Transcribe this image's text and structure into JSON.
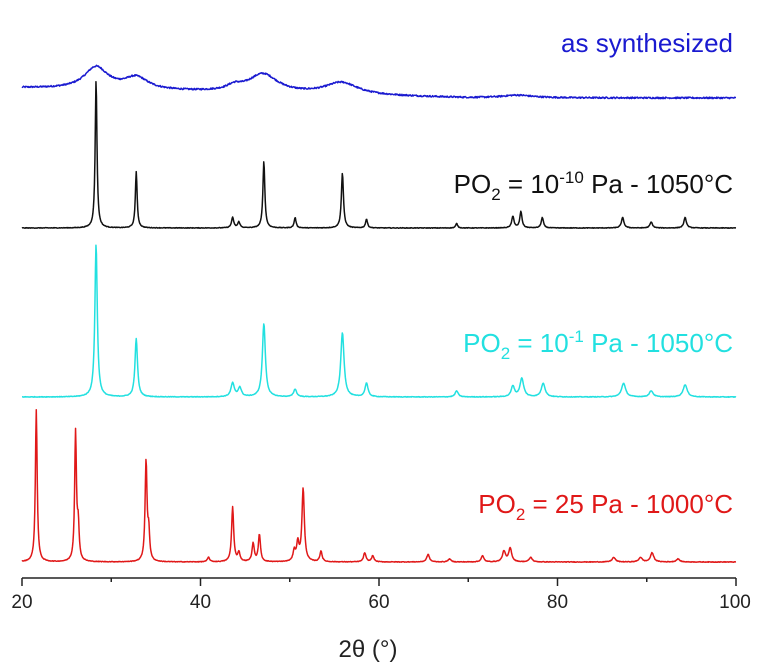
{
  "chart_data": {
    "type": "line",
    "xlabel": "2θ (°)",
    "ylabel": "",
    "xlim": [
      20,
      100
    ],
    "xticks": [
      20,
      40,
      60,
      80,
      100
    ],
    "xtick_labels": [
      "20",
      "40",
      "60",
      "80",
      "100"
    ],
    "grid": false,
    "legend": "inline labels",
    "series": [
      {
        "name": "as synthesized",
        "label_parts": {
          "main": "as synthesized"
        },
        "color": "#1a1ad0",
        "baseline": 0.45,
        "broad": true,
        "peaks": [
          {
            "x": 28.3,
            "h": 1.0,
            "w": 1.6
          },
          {
            "x": 32.8,
            "h": 0.55,
            "w": 1.6
          },
          {
            "x": 43.8,
            "h": 0.22,
            "w": 1.0
          },
          {
            "x": 47.0,
            "h": 0.85,
            "w": 2.0
          },
          {
            "x": 55.8,
            "h": 0.55,
            "w": 2.2
          },
          {
            "x": 75.5,
            "h": 0.12,
            "w": 2.0
          }
        ]
      },
      {
        "name": "PO2 = 10-10 Pa - 1050°C",
        "label_parts": {
          "pre": "PO",
          "sub": "2",
          "mid": " = 10",
          "sup": "-10",
          "post": " Pa - 1050°C"
        },
        "color": "#111111",
        "baseline": 0.0,
        "broad": false,
        "peaks": [
          {
            "x": 28.3,
            "h": 1.0,
            "w": 0.12
          },
          {
            "x": 32.8,
            "h": 0.38,
            "w": 0.12
          },
          {
            "x": 43.6,
            "h": 0.07,
            "w": 0.15
          },
          {
            "x": 44.3,
            "h": 0.04,
            "w": 0.15
          },
          {
            "x": 47.1,
            "h": 0.45,
            "w": 0.13
          },
          {
            "x": 50.6,
            "h": 0.07,
            "w": 0.13
          },
          {
            "x": 55.9,
            "h": 0.37,
            "w": 0.14
          },
          {
            "x": 58.6,
            "h": 0.06,
            "w": 0.13
          },
          {
            "x": 68.7,
            "h": 0.03,
            "w": 0.13
          },
          {
            "x": 75.0,
            "h": 0.08,
            "w": 0.15
          },
          {
            "x": 75.9,
            "h": 0.11,
            "w": 0.15
          },
          {
            "x": 78.3,
            "h": 0.07,
            "w": 0.15
          },
          {
            "x": 87.3,
            "h": 0.07,
            "w": 0.17
          },
          {
            "x": 90.5,
            "h": 0.04,
            "w": 0.17
          },
          {
            "x": 94.3,
            "h": 0.07,
            "w": 0.17
          }
        ]
      },
      {
        "name": "PO2 = 10-1 Pa - 1050°C",
        "label_parts": {
          "pre": "PO",
          "sub": "2",
          "mid": " = 10",
          "sup": "-1",
          "post": " Pa - 1050°C"
        },
        "color": "#22e0e0",
        "baseline": 0.0,
        "broad": false,
        "peaks": [
          {
            "x": 28.3,
            "h": 1.0,
            "w": 0.16
          },
          {
            "x": 32.8,
            "h": 0.38,
            "w": 0.17
          },
          {
            "x": 43.6,
            "h": 0.09,
            "w": 0.22
          },
          {
            "x": 44.4,
            "h": 0.06,
            "w": 0.22
          },
          {
            "x": 47.1,
            "h": 0.48,
            "w": 0.2
          },
          {
            "x": 50.6,
            "h": 0.05,
            "w": 0.2
          },
          {
            "x": 55.9,
            "h": 0.42,
            "w": 0.22
          },
          {
            "x": 58.6,
            "h": 0.09,
            "w": 0.2
          },
          {
            "x": 68.7,
            "h": 0.04,
            "w": 0.2
          },
          {
            "x": 75.0,
            "h": 0.07,
            "w": 0.22
          },
          {
            "x": 76.0,
            "h": 0.12,
            "w": 0.25
          },
          {
            "x": 78.4,
            "h": 0.09,
            "w": 0.25
          },
          {
            "x": 87.4,
            "h": 0.09,
            "w": 0.27
          },
          {
            "x": 90.5,
            "h": 0.04,
            "w": 0.25
          },
          {
            "x": 94.3,
            "h": 0.08,
            "w": 0.27
          }
        ]
      },
      {
        "name": "PO2 = 25 Pa - 1000°C",
        "label_parts": {
          "pre": "PO",
          "sub": "2",
          "mid": " = 25 Pa - 1000°C"
        },
        "color": "#e01818",
        "baseline": 0.0,
        "broad": false,
        "peaks": [
          {
            "x": 21.6,
            "h": 1.0,
            "w": 0.12
          },
          {
            "x": 26.0,
            "h": 0.85,
            "w": 0.12
          },
          {
            "x": 26.3,
            "h": 0.22,
            "w": 0.12
          },
          {
            "x": 33.9,
            "h": 0.66,
            "w": 0.13
          },
          {
            "x": 34.2,
            "h": 0.18,
            "w": 0.12
          },
          {
            "x": 40.9,
            "h": 0.03,
            "w": 0.15
          },
          {
            "x": 43.6,
            "h": 0.36,
            "w": 0.14
          },
          {
            "x": 44.3,
            "h": 0.06,
            "w": 0.15
          },
          {
            "x": 45.9,
            "h": 0.12,
            "w": 0.15
          },
          {
            "x": 46.6,
            "h": 0.18,
            "w": 0.14
          },
          {
            "x": 50.5,
            "h": 0.07,
            "w": 0.15
          },
          {
            "x": 50.9,
            "h": 0.12,
            "w": 0.15
          },
          {
            "x": 51.5,
            "h": 0.48,
            "w": 0.16
          },
          {
            "x": 53.5,
            "h": 0.07,
            "w": 0.15
          },
          {
            "x": 58.4,
            "h": 0.06,
            "w": 0.16
          },
          {
            "x": 59.3,
            "h": 0.04,
            "w": 0.16
          },
          {
            "x": 65.5,
            "h": 0.05,
            "w": 0.18
          },
          {
            "x": 67.9,
            "h": 0.02,
            "w": 0.18
          },
          {
            "x": 71.6,
            "h": 0.04,
            "w": 0.18
          },
          {
            "x": 74.0,
            "h": 0.07,
            "w": 0.2
          },
          {
            "x": 74.7,
            "h": 0.09,
            "w": 0.2
          },
          {
            "x": 77.0,
            "h": 0.03,
            "w": 0.2
          },
          {
            "x": 86.3,
            "h": 0.03,
            "w": 0.22
          },
          {
            "x": 89.3,
            "h": 0.03,
            "w": 0.22
          },
          {
            "x": 90.6,
            "h": 0.06,
            "w": 0.22
          },
          {
            "x": 93.5,
            "h": 0.02,
            "w": 0.22
          }
        ]
      }
    ]
  }
}
